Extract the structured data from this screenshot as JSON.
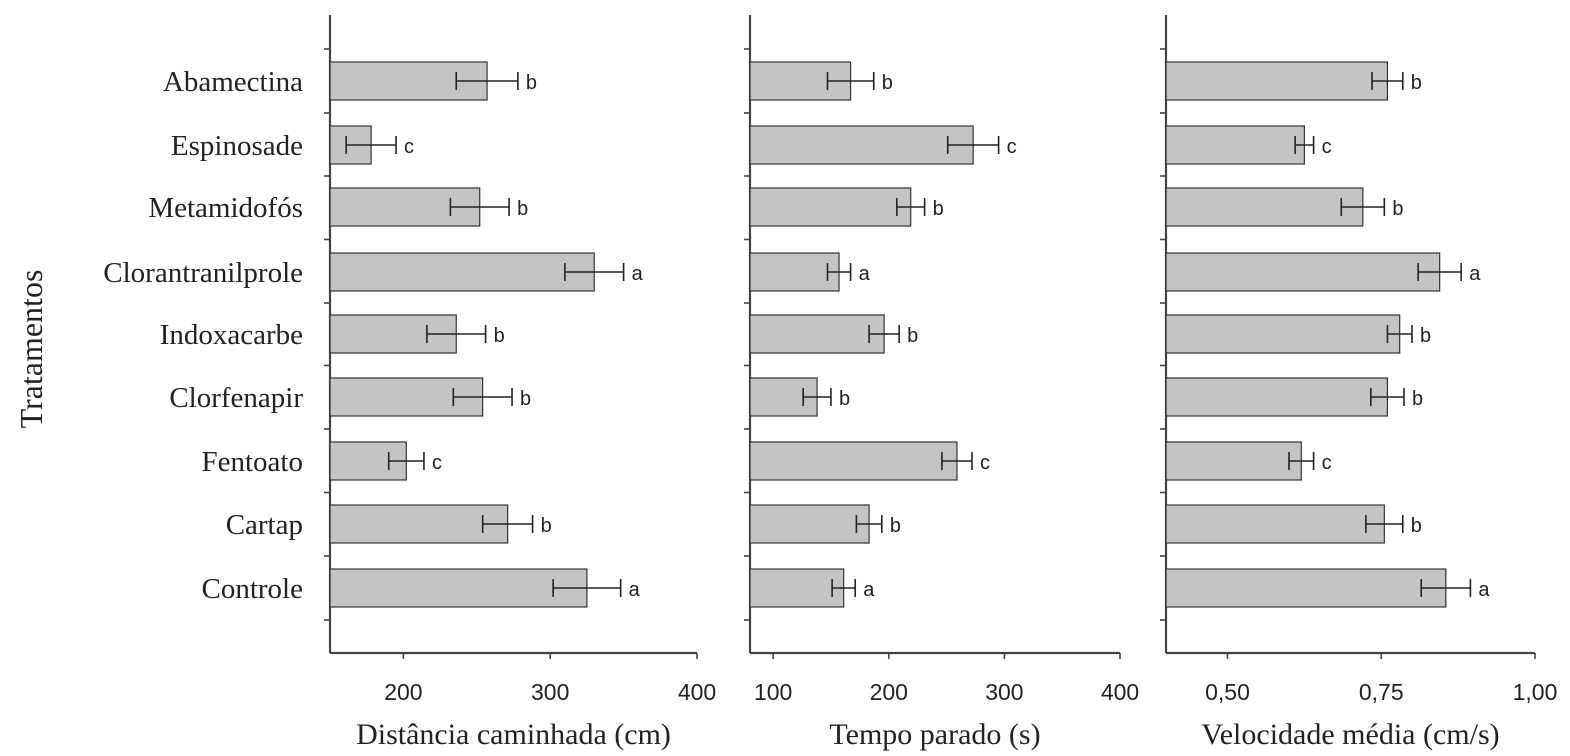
{
  "chart_data": [
    {
      "type": "bar",
      "orientation": "horizontal",
      "ylabel": "Tratamentos",
      "xlabel": "Distância caminhada (cm)",
      "categories": [
        "Abamectina",
        "Espinosade",
        "Metamidofós",
        "Clorantranilprole",
        "Indoxacarbe",
        "Clorfenapir",
        "Fentoato",
        "Cartap",
        "Controle"
      ],
      "values": [
        257,
        178,
        252,
        330,
        236,
        254,
        202,
        271,
        325
      ],
      "errors": [
        21,
        17,
        20,
        20,
        20,
        20,
        12,
        17,
        23
      ],
      "significance": [
        "b",
        "c",
        "b",
        "a",
        "b",
        "b",
        "c",
        "b",
        "a"
      ],
      "xlim": [
        150,
        400
      ],
      "xticks": [
        200,
        300,
        400
      ],
      "xtick_labels": [
        "200",
        "300",
        "400"
      ],
      "bar_color": "#c4c4c4"
    },
    {
      "type": "bar",
      "orientation": "horizontal",
      "xlabel": "Tempo parado (s)",
      "categories": [
        "Abamectina",
        "Espinosade",
        "Metamidofós",
        "Clorantranilprole",
        "Indoxacarbe",
        "Clorfenapir",
        "Fentoato",
        "Cartap",
        "Controle"
      ],
      "values": [
        167,
        273,
        219,
        157,
        196,
        138,
        259,
        183,
        161
      ],
      "errors": [
        20,
        22,
        12,
        10,
        13,
        12,
        13,
        11,
        10
      ],
      "significance": [
        "b",
        "c",
        "b",
        "a",
        "b",
        "b",
        "c",
        "b",
        "a"
      ],
      "xlim": [
        80,
        400
      ],
      "xticks": [
        100,
        200,
        300,
        400
      ],
      "xtick_labels": [
        "100",
        "200",
        "300",
        "400"
      ],
      "bar_color": "#c4c4c4"
    },
    {
      "type": "bar",
      "orientation": "horizontal",
      "xlabel": "Velocidade média (cm/s)",
      "categories": [
        "Abamectina",
        "Espinosade",
        "Metamidofós",
        "Clorantranilprole",
        "Indoxacarbe",
        "Clorfenapir",
        "Fentoato",
        "Cartap",
        "Controle"
      ],
      "values": [
        0.76,
        0.625,
        0.72,
        0.845,
        0.78,
        0.76,
        0.62,
        0.755,
        0.855
      ],
      "errors": [
        0.025,
        0.015,
        0.035,
        0.035,
        0.02,
        0.027,
        0.02,
        0.03,
        0.04
      ],
      "significance": [
        "b",
        "c",
        "b",
        "a",
        "b",
        "b",
        "c",
        "b",
        "a"
      ],
      "xlim": [
        0.4,
        1.0
      ],
      "xticks": [
        0.5,
        0.75,
        1.0
      ],
      "xtick_labels": [
        "0,50",
        "0,75",
        "1,00"
      ],
      "bar_color": "#c4c4c4"
    }
  ]
}
